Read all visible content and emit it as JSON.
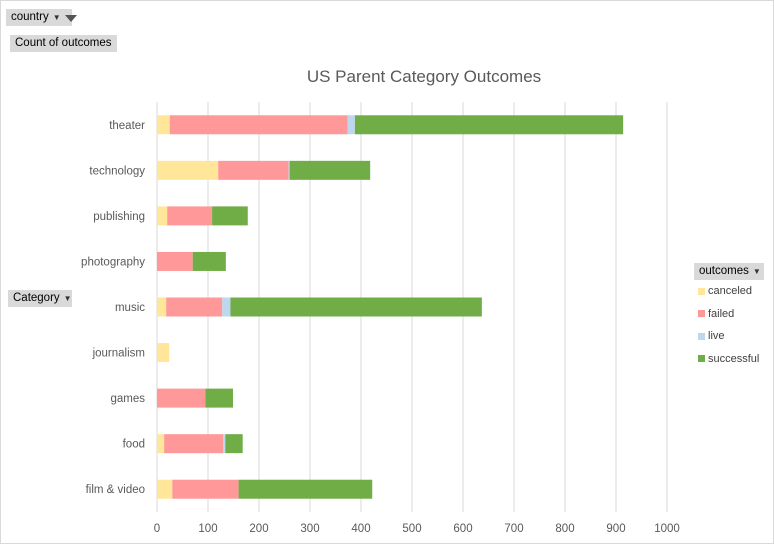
{
  "filters": {
    "country_label": "country",
    "values_label": "Count of outcomes",
    "category_label": "Category",
    "outcomes_label": "outcomes"
  },
  "chart_data": {
    "type": "bar",
    "orientation": "horizontal",
    "stacked": true,
    "title": "US Parent Category Outcomes",
    "categories": [
      "theater",
      "technology",
      "publishing",
      "photography",
      "music",
      "journalism",
      "games",
      "food",
      "film & video"
    ],
    "series": [
      {
        "name": "canceled",
        "color": "#FFE699",
        "values": [
          25,
          120,
          20,
          0,
          18,
          24,
          0,
          14,
          30
        ]
      },
      {
        "name": "failed",
        "color": "#FF9999",
        "values": [
          349,
          138,
          88,
          70,
          110,
          0,
          95,
          116,
          130
        ]
      },
      {
        "name": "live",
        "color": "#BDD7EE",
        "values": [
          14,
          2,
          0,
          0,
          16,
          0,
          0,
          4,
          0
        ]
      },
      {
        "name": "successful",
        "color": "#70AD47",
        "values": [
          526,
          158,
          70,
          65,
          493,
          0,
          54,
          34,
          262
        ]
      }
    ],
    "xlim": [
      0,
      1000
    ],
    "xticks": [
      0,
      100,
      200,
      300,
      400,
      500,
      600,
      700,
      800,
      900,
      1000
    ],
    "grid": true,
    "legend_position": "right"
  }
}
